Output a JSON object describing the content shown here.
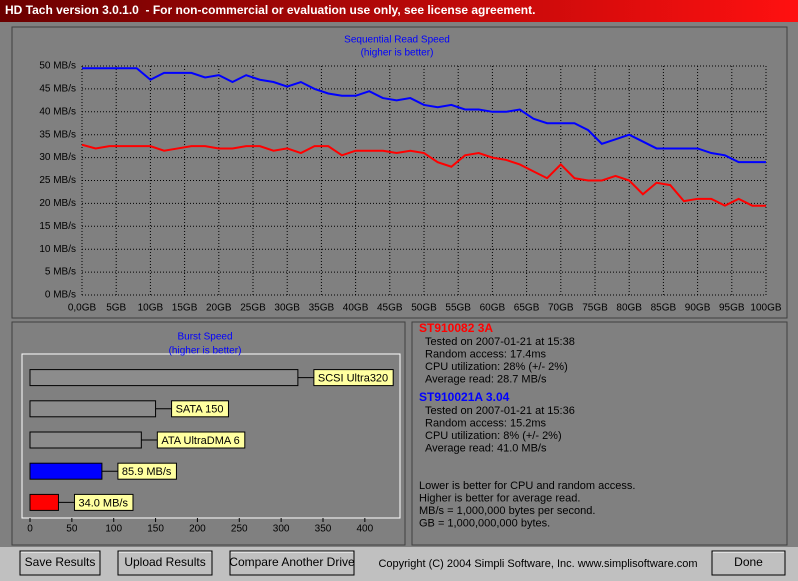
{
  "window_title": "HD Tach version 3.0.1.0  - For non-commercial or evaluation use only, see license agreement.",
  "chart_data": [
    {
      "type": "line",
      "title": "Sequential Read Speed",
      "subtitle": "(higher is better)",
      "x": [
        0,
        2,
        4,
        6,
        8,
        10,
        12,
        14,
        16,
        18,
        20,
        22,
        24,
        26,
        28,
        30,
        32,
        34,
        36,
        38,
        40,
        42,
        44,
        46,
        48,
        50,
        52,
        54,
        56,
        58,
        60,
        62,
        64,
        66,
        68,
        70,
        72,
        74,
        76,
        78,
        80,
        82,
        84,
        86,
        88,
        90,
        92,
        94,
        96,
        98,
        100
      ],
      "series": [
        {
          "name": "ST910082 3A",
          "color": "#ff0000",
          "values": [
            32.8,
            32,
            32.5,
            32.5,
            32.5,
            32.5,
            31.5,
            32,
            32.5,
            32.5,
            32,
            32,
            32.5,
            32.5,
            31.5,
            32,
            31,
            32.5,
            32.5,
            30.5,
            31.5,
            31.5,
            31.5,
            31,
            31.5,
            31,
            29,
            28,
            30.5,
            31,
            30,
            29.5,
            28.5,
            27,
            25.5,
            28.5,
            25.5,
            25,
            25,
            26,
            25,
            22,
            24.5,
            24,
            20.5,
            21,
            21,
            19.5,
            21,
            19.5,
            19.5
          ]
        },
        {
          "name": "ST910021A 3.04",
          "color": "#0000ff",
          "values": [
            49.5,
            49.5,
            49.5,
            49.5,
            49.5,
            47,
            48.5,
            48.5,
            48.5,
            47.5,
            48,
            46.5,
            48,
            47,
            46.5,
            45.5,
            46.5,
            45,
            44,
            43.5,
            43.5,
            44.5,
            43,
            42.5,
            43,
            41.5,
            41,
            41.5,
            40.5,
            40.5,
            40,
            40,
            40.5,
            38.5,
            37.5,
            37.5,
            37.5,
            36,
            33,
            34,
            35,
            33.5,
            32,
            32,
            32,
            32,
            31,
            30.5,
            29,
            29,
            29
          ]
        }
      ],
      "xlim": [
        0,
        100
      ],
      "xticks": [
        {
          "value": 0,
          "label": "0,0GB"
        },
        {
          "value": 5,
          "label": "5GB"
        },
        {
          "value": 10,
          "label": "10GB"
        },
        {
          "value": 15,
          "label": "15GB"
        },
        {
          "value": 20,
          "label": "20GB"
        },
        {
          "value": 25,
          "label": "25GB"
        },
        {
          "value": 30,
          "label": "30GB"
        },
        {
          "value": 35,
          "label": "35GB"
        },
        {
          "value": 40,
          "label": "40GB"
        },
        {
          "value": 45,
          "label": "45GB"
        },
        {
          "value": 50,
          "label": "50GB"
        },
        {
          "value": 55,
          "label": "55GB"
        },
        {
          "value": 60,
          "label": "60GB"
        },
        {
          "value": 65,
          "label": "65GB"
        },
        {
          "value": 70,
          "label": "70GB"
        },
        {
          "value": 75,
          "label": "75GB"
        },
        {
          "value": 80,
          "label": "80GB"
        },
        {
          "value": 85,
          "label": "85GB"
        },
        {
          "value": 90,
          "label": "90GB"
        },
        {
          "value": 95,
          "label": "95GB"
        },
        {
          "value": 100,
          "label": "100GB"
        }
      ],
      "ylim": [
        0,
        50
      ],
      "yticks": [
        {
          "value": 0,
          "label": "0 MB/s"
        },
        {
          "value": 5,
          "label": "5 MB/s"
        },
        {
          "value": 10,
          "label": "10 MB/s"
        },
        {
          "value": 15,
          "label": "15 MB/s"
        },
        {
          "value": 20,
          "label": "20 MB/s"
        },
        {
          "value": 25,
          "label": "25 MB/s"
        },
        {
          "value": 30,
          "label": "30 MB/s"
        },
        {
          "value": 35,
          "label": "35 MB/s"
        },
        {
          "value": 40,
          "label": "40 MB/s"
        },
        {
          "value": 45,
          "label": "45 MB/s"
        },
        {
          "value": 50,
          "label": "50 MB/s"
        }
      ],
      "grid": true
    },
    {
      "type": "bar",
      "orientation": "horizontal",
      "title": "Burst Speed",
      "subtitle": "(higher is better)",
      "categories": [
        "SCSI Ultra320",
        "SATA 150",
        "ATA UltraDMA 6",
        null,
        null
      ],
      "values": [
        320,
        150,
        133,
        85.9,
        34.0
      ],
      "value_labels": [
        null,
        null,
        null,
        "85.9 MB/s",
        "34.0 MB/s"
      ],
      "colors": [
        "#8c8c8c",
        "#8c8c8c",
        "#8c8c8c",
        "#0000ff",
        "#ff0000"
      ],
      "xlim": [
        0,
        442
      ],
      "xticks": [
        0,
        50,
        100,
        150,
        200,
        250,
        300,
        350,
        400
      ],
      "grid": false
    }
  ],
  "info": {
    "drives": [
      [
        "Tested on 2007-01-21 at 15:38",
        "Random access: 17.4ms",
        "CPU utilization: 28% (+/- 2%)",
        "Average read: 28.7 MB/s"
      ],
      [
        "Tested on 2007-01-21 at 15:36",
        "Random access: 15.2ms",
        "CPU utilization: 8% (+/- 2%)",
        "Average read: 41.0 MB/s"
      ]
    ],
    "notes": [
      "Lower is better for CPU and random access.",
      "Higher is better for average read.",
      "MB/s = 1,000,000 bytes per second.",
      "GB = 1,000,000,000 bytes."
    ]
  },
  "buttons": [
    "Save Results",
    "Upload Results",
    "Compare Another Drive",
    "Done"
  ],
  "copyright": "Copyright (C) 2004 Simpli Software, Inc. www.simplisoftware.com"
}
